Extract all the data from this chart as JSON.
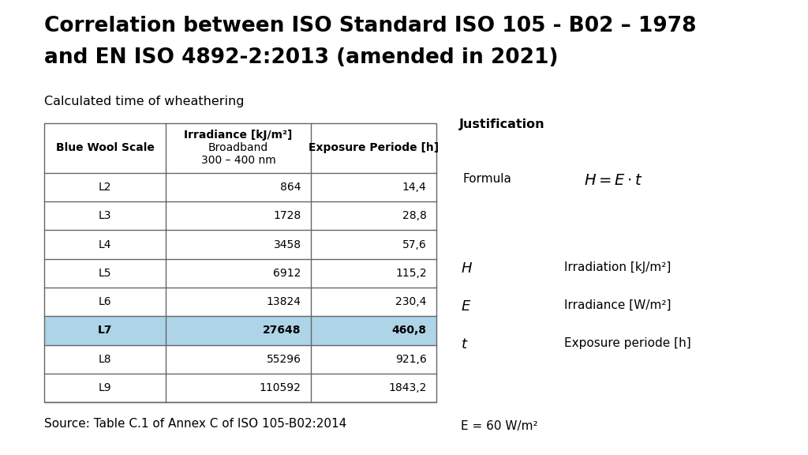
{
  "title_line1": "Correlation between ISO Standard ISO 105 - B02 – 1978",
  "title_line2": "and EN ISO 4892-2:2013 (amended in 2021)",
  "subtitle": "Calculated time of wheathering",
  "source": "Source: Table C.1 of Annex C of ISO 105-B02:2014",
  "rows": [
    [
      "L2",
      "864",
      "14,4"
    ],
    [
      "L3",
      "1728",
      "28,8"
    ],
    [
      "L4",
      "3458",
      "57,6"
    ],
    [
      "L5",
      "6912",
      "115,2"
    ],
    [
      "L6",
      "13824",
      "230,4"
    ],
    [
      "L7",
      "27648",
      "460,8"
    ],
    [
      "L8",
      "55296",
      "921,6"
    ],
    [
      "L9",
      "110592",
      "1843,2"
    ]
  ],
  "highlight_row": 5,
  "highlight_color": "#aed4e8",
  "table_border_color": "#666666",
  "justification_title": "Justification",
  "formula_label": "Formula",
  "desc_H": "Irradiation [kJ/m²]",
  "desc_E": "Irradiance [W/m²]",
  "desc_t": "Exposure periode [h]",
  "e_value": "E = 60 W/m²",
  "background_color": "#ffffff",
  "title_fontsize": 19,
  "subtitle_fontsize": 11.5,
  "source_fontsize": 11
}
